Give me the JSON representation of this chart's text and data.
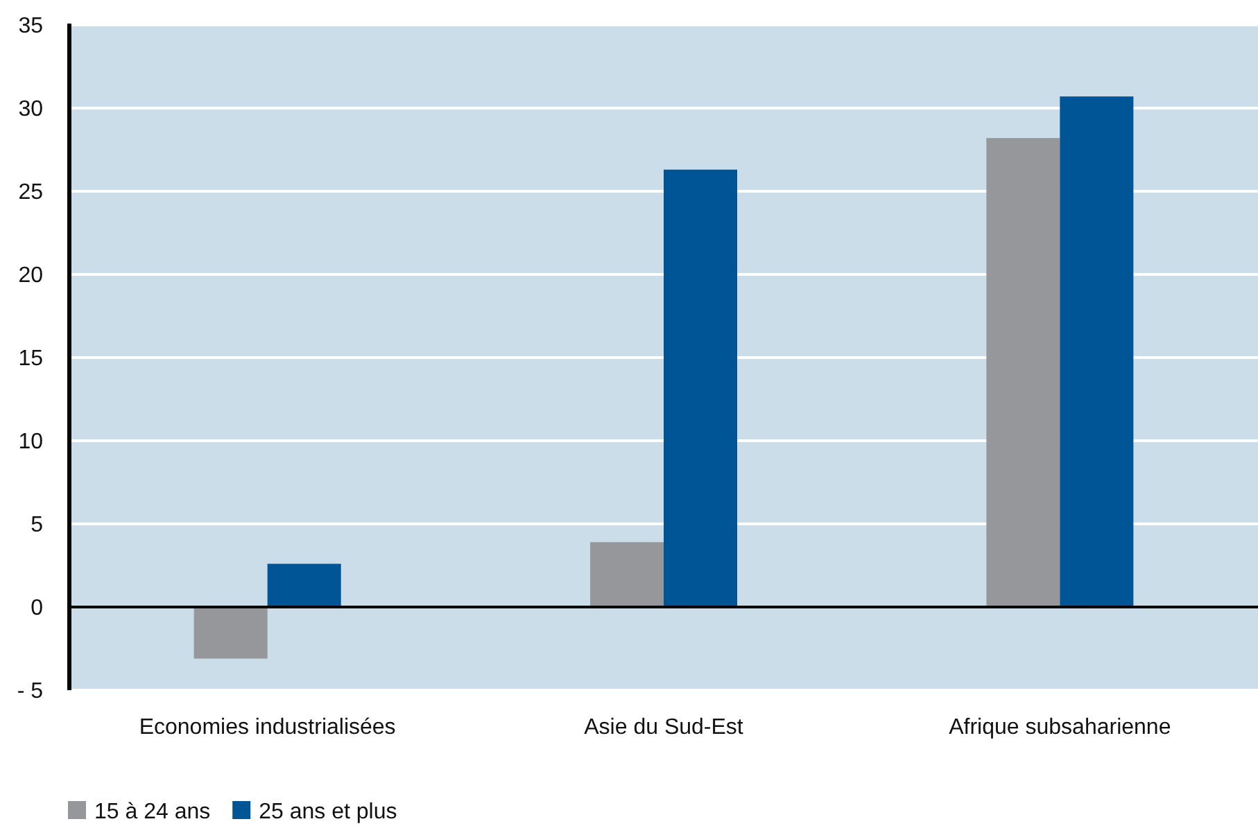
{
  "chart_data": {
    "type": "bar",
    "categories": [
      "Economies industrialisées",
      "Asie du Sud-Est",
      "Afrique subsaharienne"
    ],
    "series": [
      {
        "name": "15 à 24 ans",
        "color": "#96979b",
        "values": [
          -3.1,
          3.9,
          28.2
        ]
      },
      {
        "name": "25 ans et plus",
        "color": "#005596",
        "values": [
          2.6,
          26.3,
          30.7
        ]
      }
    ],
    "ylim": [
      -5,
      35
    ],
    "yticks": [
      {
        "value": -5,
        "label": "- 5"
      },
      0,
      5,
      10,
      15,
      20,
      25,
      30,
      35
    ],
    "grid": "y",
    "legend": "bottom left"
  }
}
